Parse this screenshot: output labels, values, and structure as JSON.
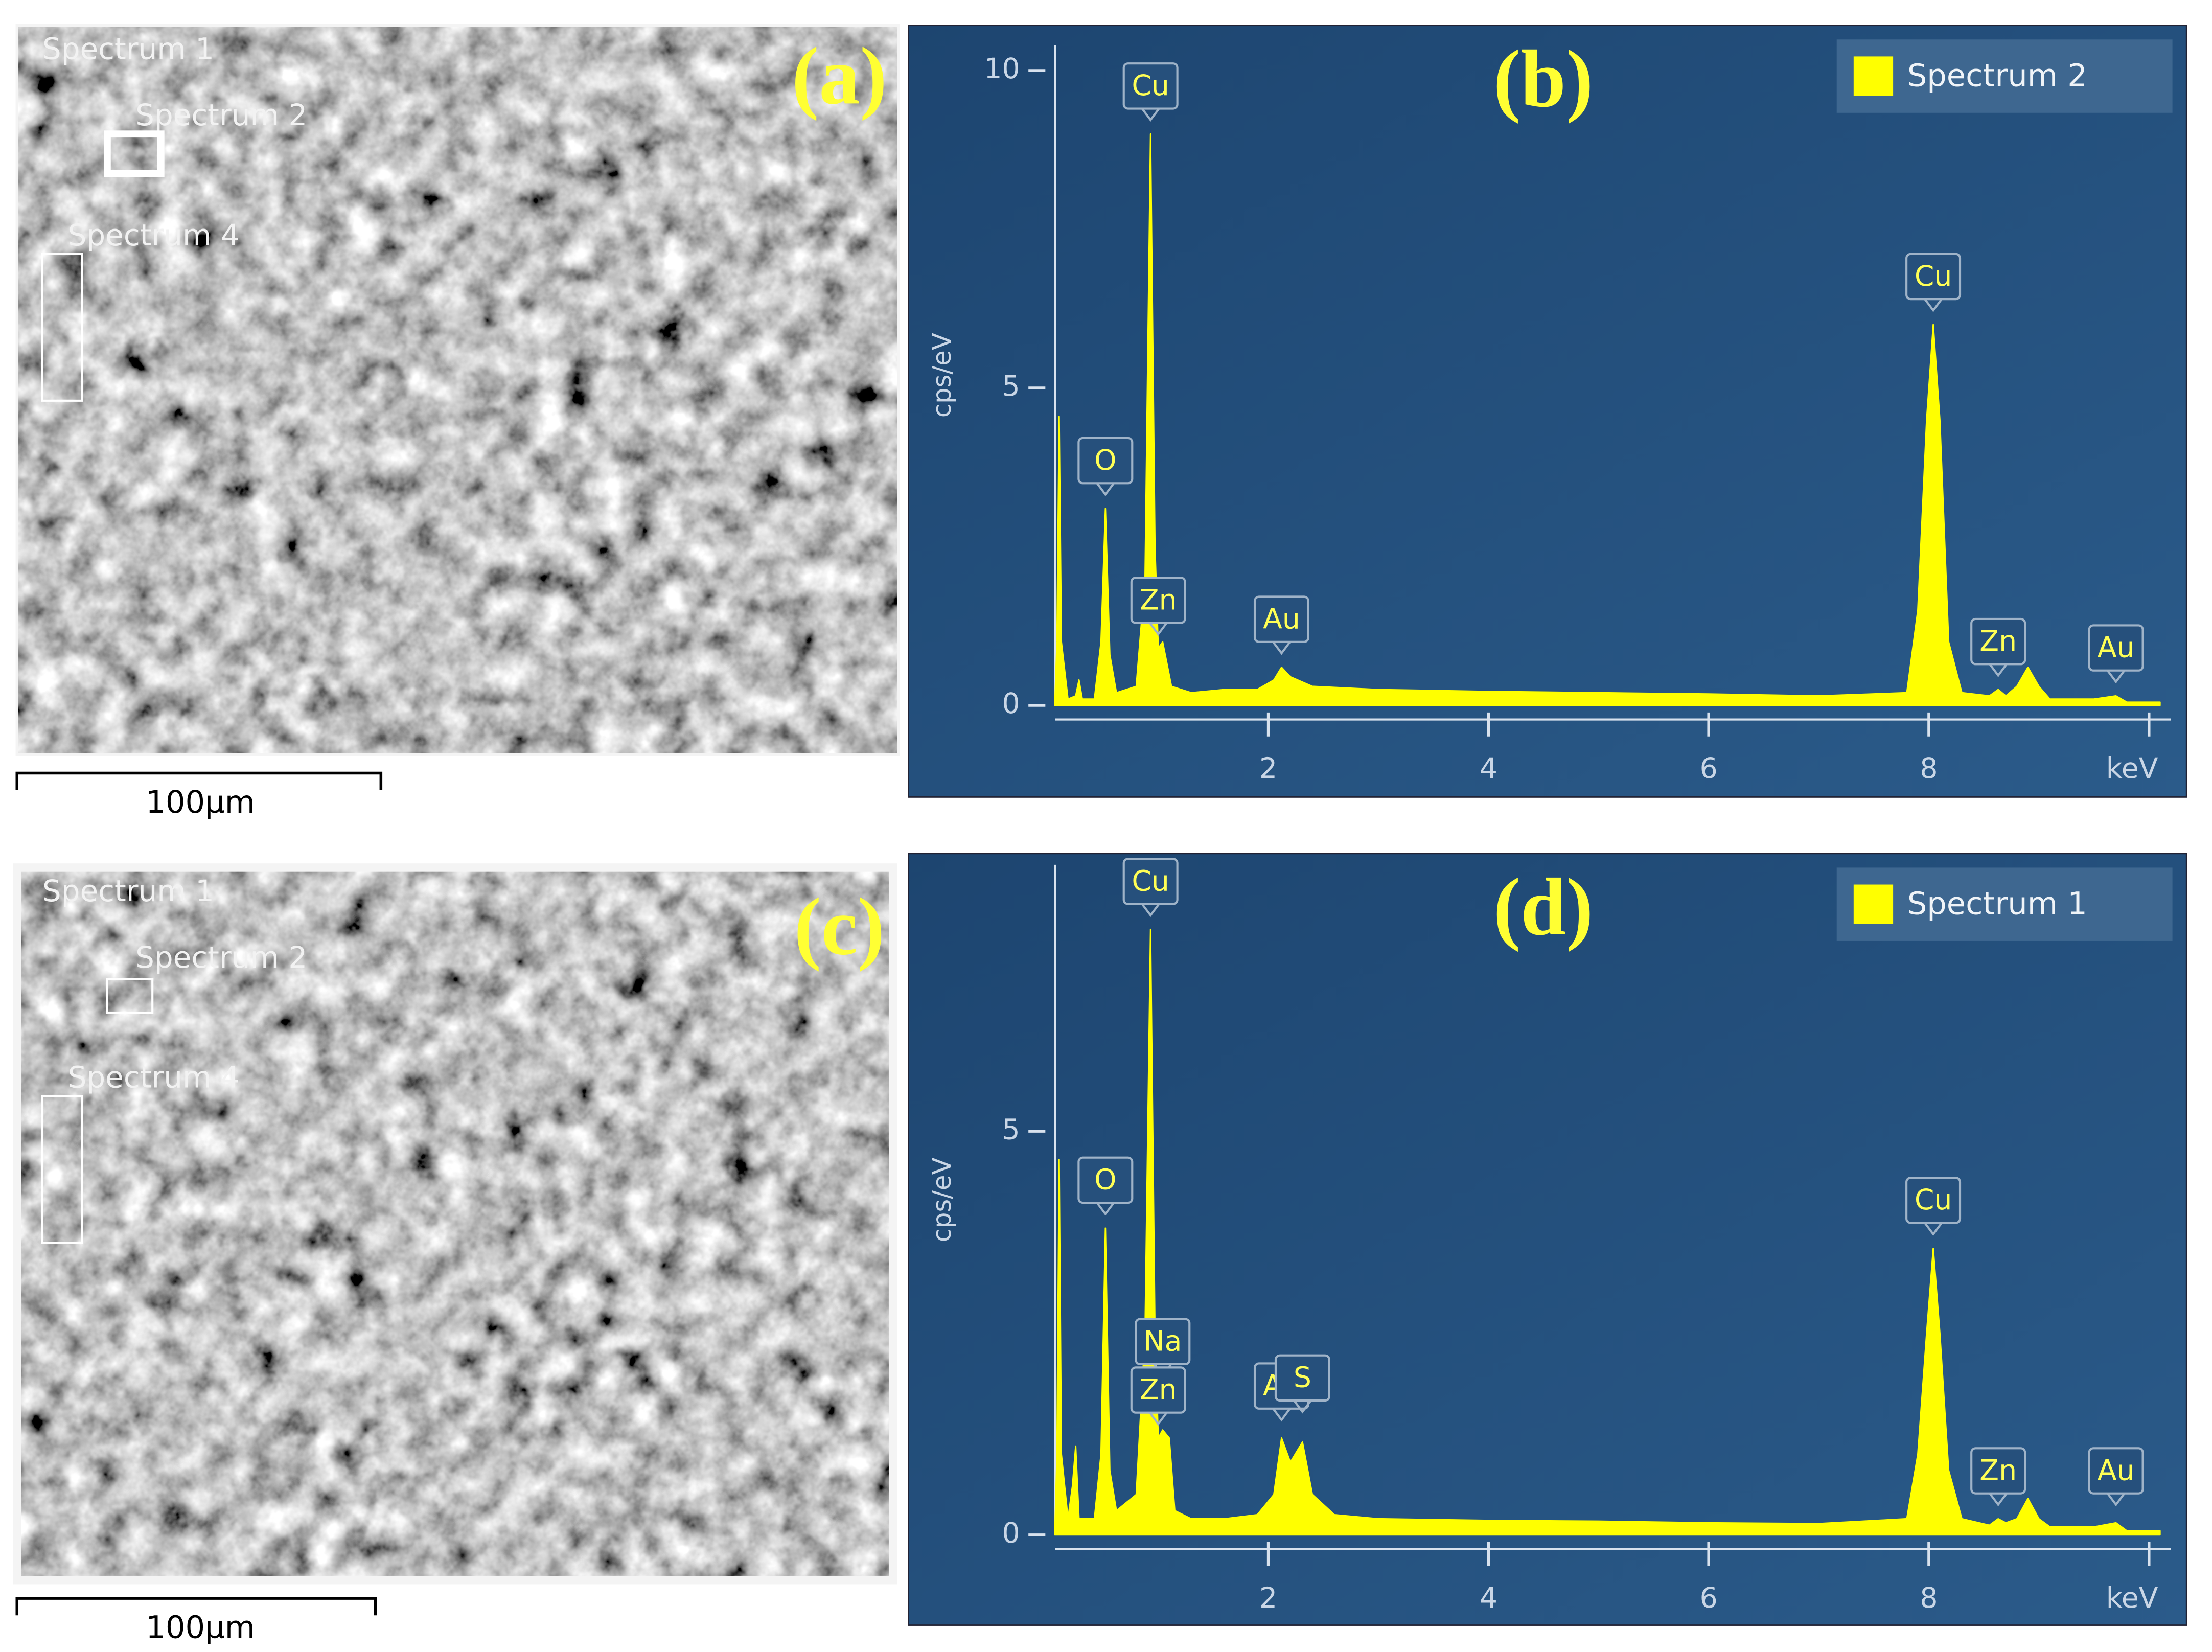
{
  "panels": [
    {
      "label": "(a)",
      "regions": [
        "Spectrum 1",
        "Spectrum 2",
        "Spectrum 4"
      ],
      "scale_bar": "100µm"
    },
    {
      "label": "(c)",
      "regions": [
        "Spectrum 1",
        "Spectrum 2",
        "Spectrum 4"
      ],
      "scale_bar": "100µm"
    }
  ],
  "chart_data": [
    {
      "type": "area",
      "panel_label": "(b)",
      "y_label": "cps/eV",
      "x": [
        0.06,
        0.08,
        0.1,
        0.12,
        0.18,
        0.25,
        0.28,
        0.31,
        0.42,
        0.48,
        0.52,
        0.56,
        0.62,
        0.8,
        0.88,
        0.93,
        0.97,
        1.0,
        1.04,
        1.12,
        1.3,
        1.6,
        1.9,
        2.05,
        2.12,
        2.2,
        2.4,
        3,
        4,
        5,
        6,
        7,
        7.8,
        7.9,
        7.98,
        8.04,
        8.1,
        8.18,
        8.3,
        8.55,
        8.63,
        8.7,
        8.8,
        8.9,
        9.0,
        9.1,
        9.5,
        9.7,
        9.8,
        10.1
      ],
      "series": [
        {
          "name": "Spectrum 2",
          "color": "#ffff00",
          "values": [
            0,
            1,
            4.55,
            1,
            0.1,
            0.15,
            0.4,
            0.1,
            0.1,
            1,
            3.1,
            0.8,
            0.2,
            0.3,
            2,
            9,
            2.5,
            0.9,
            1,
            0.3,
            0.2,
            0.25,
            0.25,
            0.4,
            0.6,
            0.45,
            0.3,
            0.25,
            0.22,
            0.2,
            0.18,
            0.15,
            0.2,
            1.5,
            4.5,
            6,
            4.5,
            1,
            0.2,
            0.15,
            0.25,
            0.15,
            0.3,
            0.6,
            0.3,
            0.1,
            0.1,
            0.15,
            0.05,
            0.05
          ]
        }
      ],
      "xlim": [
        0,
        10.2
      ],
      "ylim": [
        0,
        10.4
      ],
      "xticks": [
        2,
        4,
        6,
        8,
        {
          "value": 10,
          "label": "keV"
        }
      ],
      "yticks": [
        0,
        5,
        10
      ],
      "annotations": [
        {
          "text": "O",
          "x": 0.52,
          "y": 3.1
        },
        {
          "text": "Cu",
          "x": 0.93,
          "y": 9
        },
        {
          "text": "Zn",
          "x": 1.0,
          "y": 0.9
        },
        {
          "text": "Au",
          "x": 2.12,
          "y": 0.6
        },
        {
          "text": "Cu",
          "x": 8.04,
          "y": 6
        },
        {
          "text": "Zn",
          "x": 8.63,
          "y": 0.25
        },
        {
          "text": "Au",
          "x": 9.7,
          "y": 0.15
        }
      ]
    },
    {
      "type": "area",
      "panel_label": "(d)",
      "y_label": "cps/eV",
      "x": [
        0.06,
        0.08,
        0.1,
        0.12,
        0.18,
        0.22,
        0.25,
        0.28,
        0.42,
        0.48,
        0.52,
        0.56,
        0.62,
        0.8,
        0.88,
        0.93,
        0.97,
        1.0,
        1.04,
        1.1,
        1.15,
        1.3,
        1.6,
        1.9,
        2.05,
        2.12,
        2.2,
        2.31,
        2.4,
        2.6,
        3,
        4,
        5,
        6,
        7,
        7.8,
        7.9,
        7.98,
        8.04,
        8.1,
        8.18,
        8.3,
        8.55,
        8.63,
        8.7,
        8.8,
        8.9,
        9.0,
        9.1,
        9.5,
        9.7,
        9.8,
        10.1
      ],
      "series": [
        {
          "name": "Spectrum 1",
          "color": "#ffff00",
          "values": [
            0,
            1,
            4.65,
            1,
            0.2,
            0.6,
            1.1,
            0.2,
            0.2,
            1,
            3.8,
            0.8,
            0.3,
            0.5,
            2.5,
            7.5,
            2.5,
            1.2,
            1.3,
            1.2,
            0.3,
            0.2,
            0.2,
            0.25,
            0.5,
            1.2,
            0.9,
            1.15,
            0.5,
            0.25,
            0.2,
            0.18,
            0.17,
            0.15,
            0.14,
            0.2,
            1,
            2.5,
            3.55,
            2.5,
            0.8,
            0.2,
            0.12,
            0.2,
            0.15,
            0.2,
            0.45,
            0.2,
            0.1,
            0.1,
            0.15,
            0.05,
            0.05
          ]
        }
      ],
      "xlim": [
        0,
        10.2
      ],
      "ylim": [
        0,
        8.3
      ],
      "xticks": [
        2,
        4,
        6,
        8,
        {
          "value": 10,
          "label": "keV"
        }
      ],
      "yticks": [
        0,
        5
      ],
      "annotations": [
        {
          "text": "O",
          "x": 0.52,
          "y": 3.8
        },
        {
          "text": "Cu",
          "x": 0.93,
          "y": 7.5
        },
        {
          "text": "Na",
          "x": 1.04,
          "y": 1.8
        },
        {
          "text": "Zn",
          "x": 1.0,
          "y": 1.2
        },
        {
          "text": "Au",
          "x": 2.12,
          "y": 1.25
        },
        {
          "text": "S",
          "x": 2.31,
          "y": 1.35
        },
        {
          "text": "Cu",
          "x": 8.04,
          "y": 3.55
        },
        {
          "text": "Zn",
          "x": 8.63,
          "y": 0.2
        },
        {
          "text": "Au",
          "x": 9.7,
          "y": 0.2
        }
      ]
    }
  ]
}
